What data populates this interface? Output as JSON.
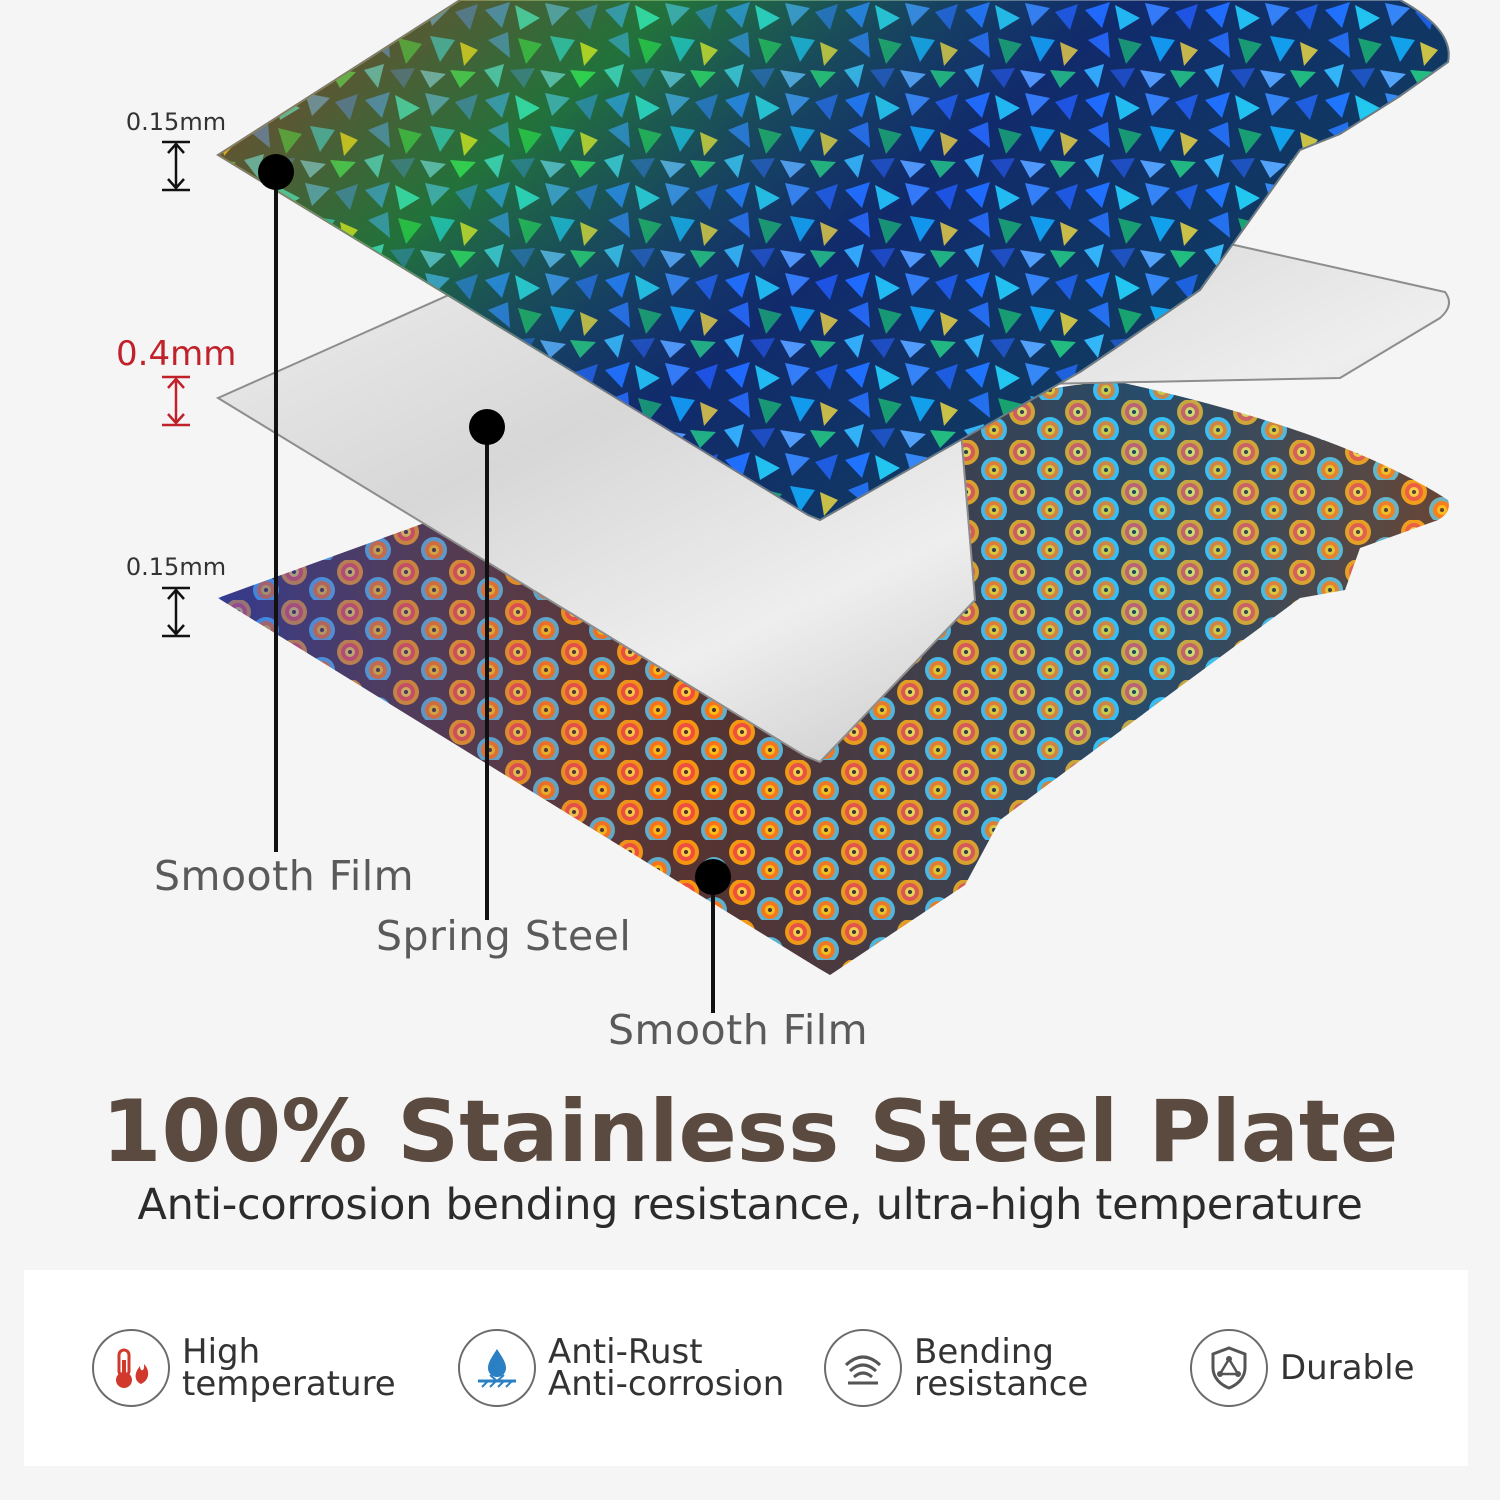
{
  "thickness_labels": {
    "top_film": "0.15mm",
    "spring_steel": "0.4mm",
    "bottom_film": "0.15mm"
  },
  "callouts": {
    "top_film": "Smooth Film",
    "spring_steel": "Spring Steel",
    "bottom_film": "Smooth Film"
  },
  "headline": "100% Stainless Steel Plate",
  "subline": "Anti-corrosion bending resistance, ultra-high temperature",
  "features": [
    {
      "icon": "thermometer-flame-icon",
      "lines": [
        "High",
        "temperature"
      ]
    },
    {
      "icon": "water-drop-icon",
      "lines": [
        "Anti-Rust",
        "Anti-corrosion"
      ]
    },
    {
      "icon": "bending-waves-icon",
      "lines": [
        "Bending",
        "resistance"
      ]
    },
    {
      "icon": "shield-icon",
      "lines": [
        "Durable"
      ]
    }
  ],
  "colors": {
    "background": "#f5f5f5",
    "headline": "#5b4a3f",
    "accent_red": "#c0212a",
    "icon_red": "#d0392b",
    "icon_blue": "#2b7fc3"
  }
}
